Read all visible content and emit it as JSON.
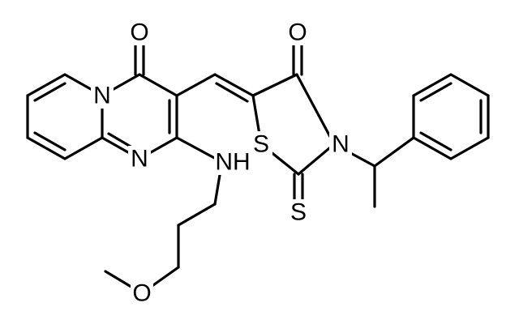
{
  "atom_labels": [
    "O",
    "N",
    "N",
    "NH",
    "O",
    "O",
    "S",
    "N",
    "S"
  ]
}
